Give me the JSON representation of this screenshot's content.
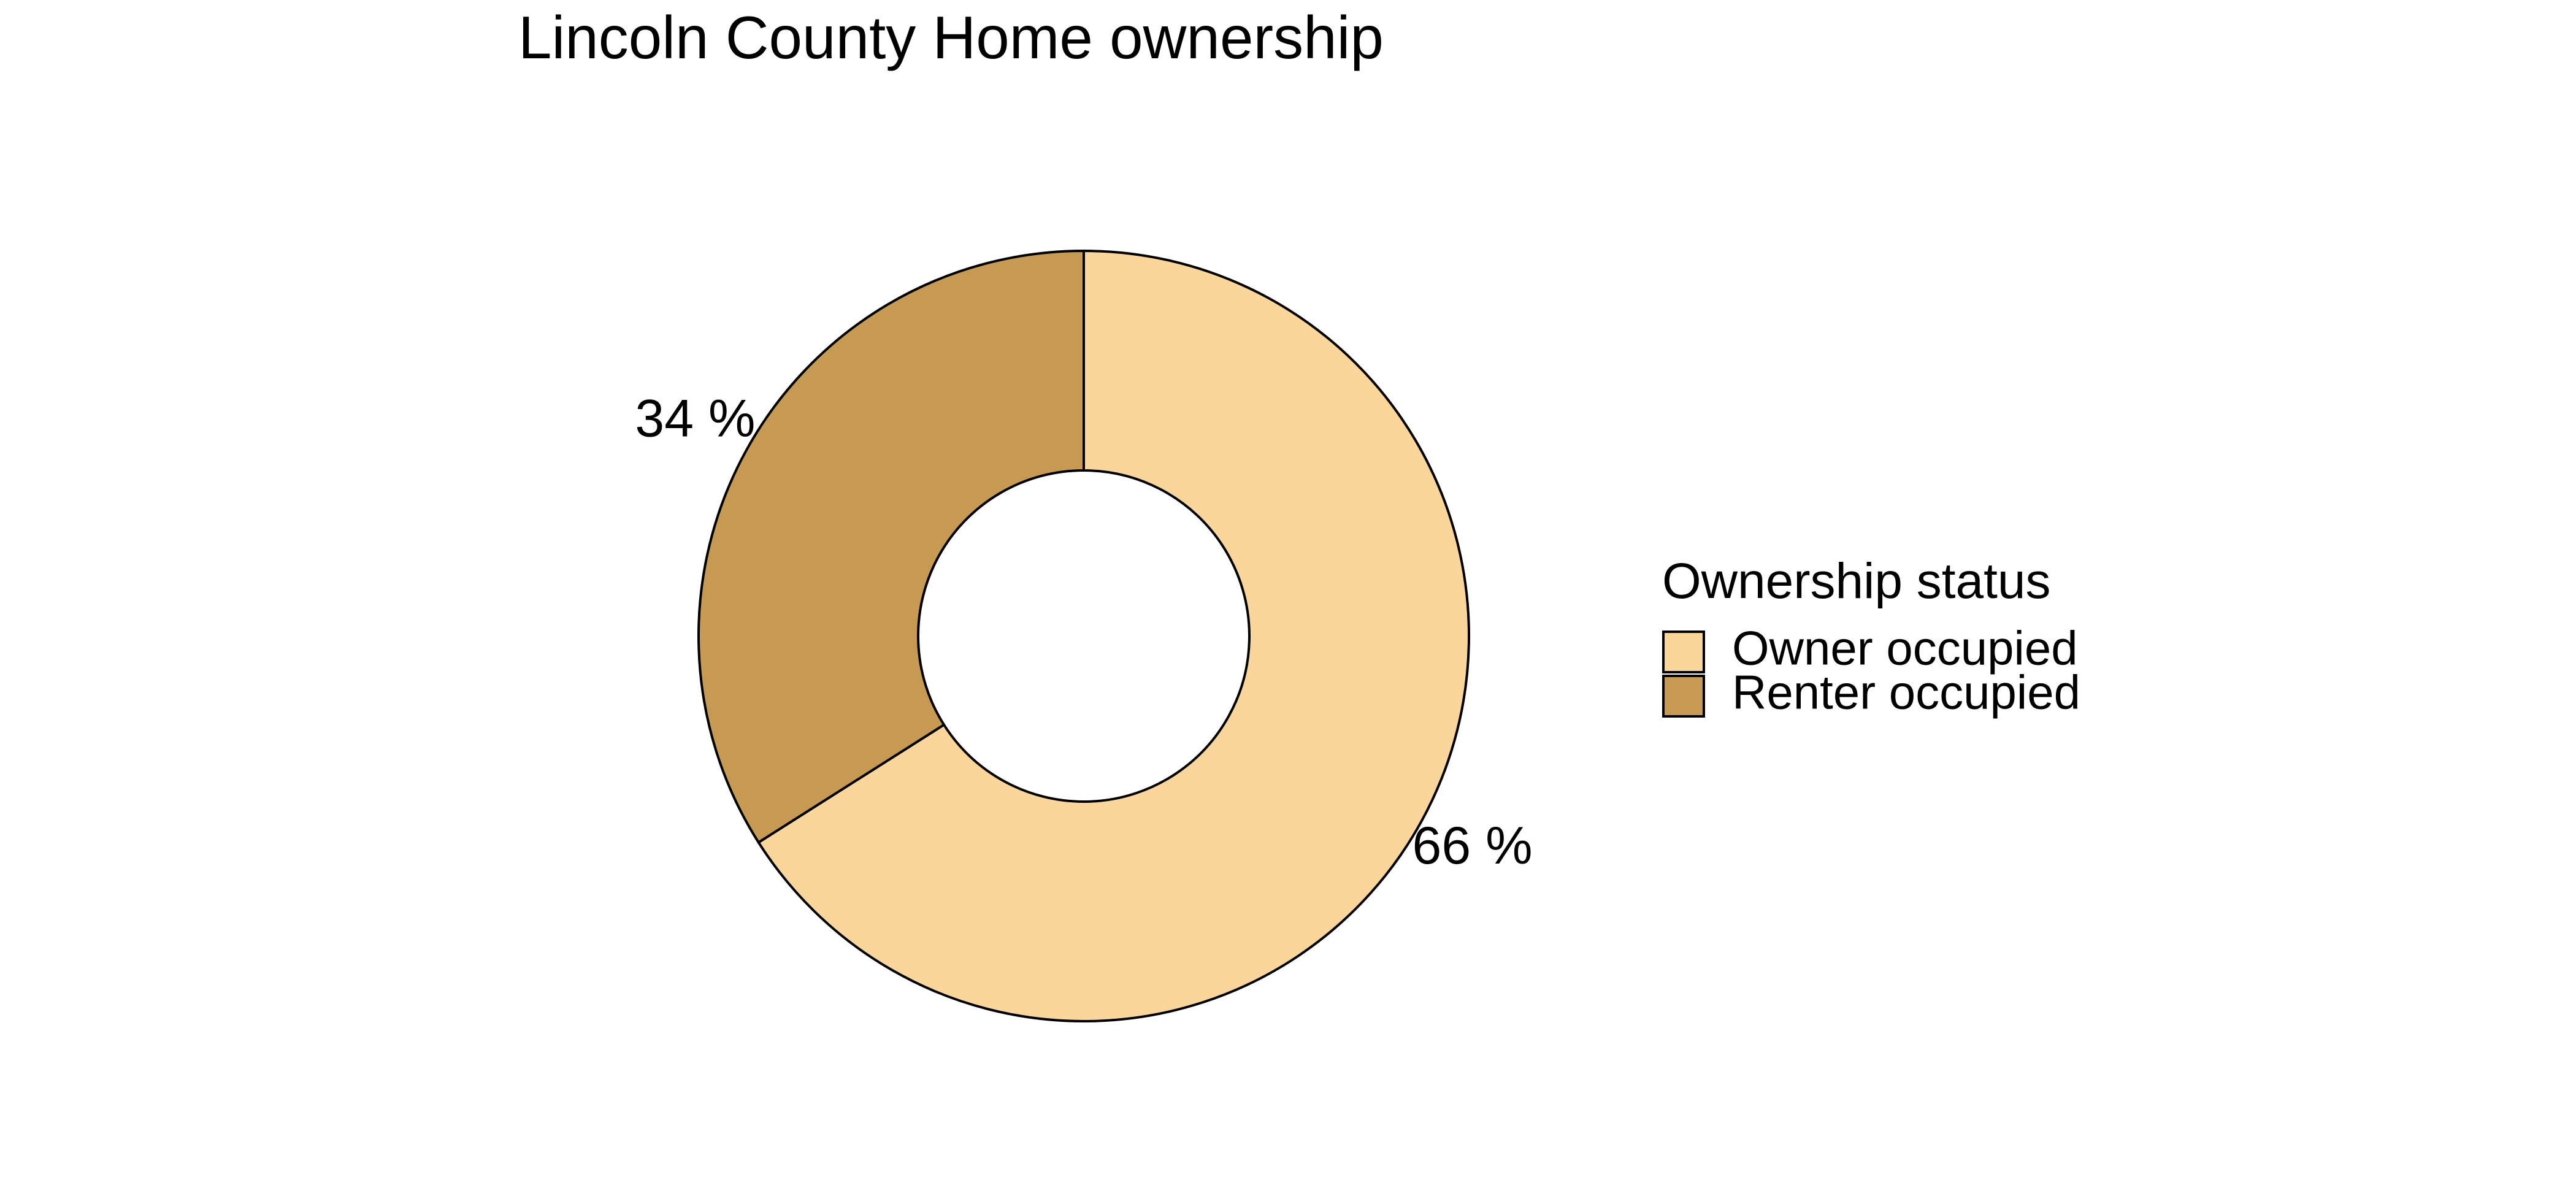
{
  "chart_data": {
    "type": "pie",
    "variant": "donut",
    "title": "Lincoln County Home ownership",
    "categories": [
      "Owner occupied",
      "Renter occupied"
    ],
    "values": [
      66,
      34
    ],
    "value_labels": [
      "66 %",
      "34 %"
    ],
    "colors": [
      "#FAD69A",
      "#C69B51"
    ],
    "legend": {
      "title": "Ownership status",
      "position": "right",
      "entries": [
        "Owner occupied",
        "Renter occupied"
      ]
    }
  }
}
